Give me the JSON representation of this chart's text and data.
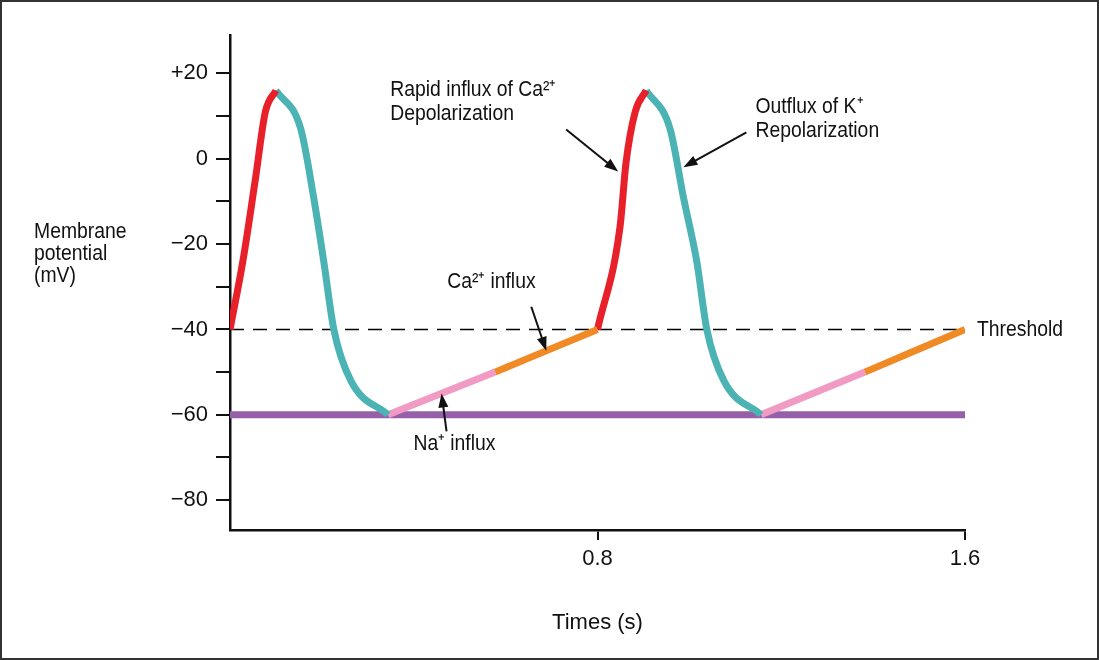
{
  "chart_data": {
    "type": "line",
    "xlabel": "Times (s)",
    "ylabel": "Membrane\npotential\n(mV)",
    "xlim": [
      0,
      1.6
    ],
    "xticks": [
      0.8,
      1.6
    ],
    "ylim": [
      -87,
      29
    ],
    "yticks": [
      {
        "value": 20,
        "label": "+20"
      },
      {
        "value": 10,
        "label": null
      },
      0,
      {
        "value": -10,
        "label": null
      },
      {
        "value": -20,
        "label": "−20"
      },
      {
        "value": -30,
        "label": null
      },
      {
        "value": -40,
        "label": "−40"
      },
      {
        "value": -50,
        "label": null
      },
      {
        "value": -60,
        "label": "−60"
      },
      {
        "value": -70,
        "label": null
      },
      {
        "value": -80,
        "label": "−80"
      }
    ],
    "grid": false,
    "legend": false,
    "marker": "none",
    "line_style": "solid",
    "series": [
      {
        "color": "#e8202a",
        "x": [
          0,
          0.028,
          0.055,
          0.077,
          0.1
        ],
        "values": [
          -40,
          -24,
          -5,
          11,
          16
        ]
      },
      {
        "color": "#4bb3b3",
        "x": [
          0.1,
          0.154,
          0.182,
          0.204,
          0.226,
          0.263,
          0.344
        ],
        "values": [
          16,
          7,
          -9,
          -24,
          -40,
          -52,
          -60
        ]
      },
      {
        "color": "#f09ac4",
        "x": [
          0.344,
          0.577
        ],
        "values": [
          -60,
          -50
        ]
      },
      {
        "color": "#f08a24",
        "x": [
          0.577,
          0.8
        ],
        "values": [
          -50,
          -40
        ]
      },
      {
        "color": "#e8202a",
        "x": [
          0.8,
          0.849,
          0.862,
          0.882,
          0.906
        ],
        "values": [
          -40,
          -16,
          -1,
          11,
          16
        ]
      },
      {
        "color": "#4bb3b3",
        "x": [
          0.906,
          0.958,
          0.987,
          1.016,
          1.038,
          1.075,
          1.156
        ],
        "values": [
          16,
          7,
          -9,
          -24,
          -40,
          -52,
          -60
        ]
      },
      {
        "color": "#f09ac4",
        "x": [
          1.156,
          1.382
        ],
        "values": [
          -60,
          -50
        ]
      },
      {
        "color": "#f08a24",
        "x": [
          1.382,
          1.6
        ],
        "values": [
          -50,
          -40
        ]
      }
    ],
    "ref_lines": [
      {
        "axis": "y",
        "value": -60,
        "color": "#9560a8",
        "line_style": "solid",
        "label": null
      },
      {
        "axis": "y",
        "value": -40,
        "color": "#000000",
        "line_style": "dashed",
        "label": "Threshold"
      }
    ],
    "annotations": [
      {
        "text": "Rapid influx of Ca²⁺\nDepolarization",
        "x": 0.845,
        "y": -3
      },
      {
        "text": "Outflux of K⁺\nRepolarization",
        "x": 0.987,
        "y": -2
      },
      {
        "text": "Ca²⁺ influx",
        "x": 0.6885,
        "y": -45
      },
      {
        "text": "Na⁺ influx",
        "x": 0.4605,
        "y": -55
      }
    ]
  }
}
